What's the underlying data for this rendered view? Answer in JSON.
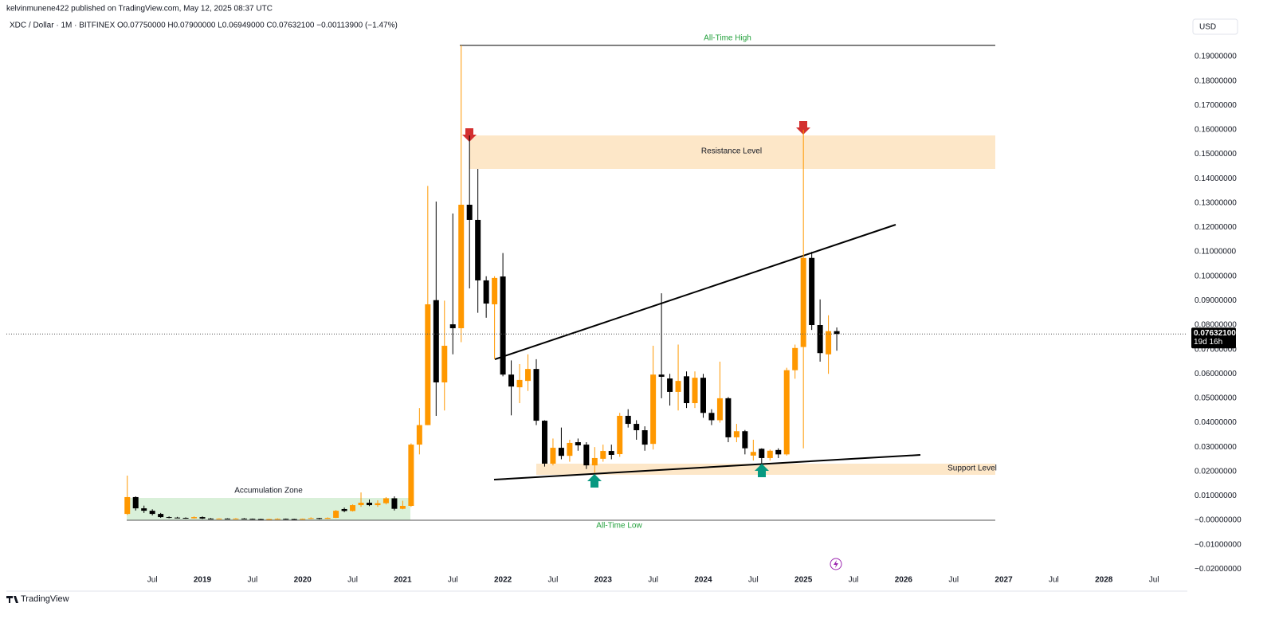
{
  "header": {
    "publisher": "kelvinmunene422 published on TradingView.com, May 12, 2025 08:37 UTC",
    "legend": "XDC / Dollar · 1M · BITFINEX  O0.07750000  H0.07900000  L0.06949000  C0.07632100  −0.00113900 (−1.47%)",
    "currency": "USD",
    "logo": "TradingView"
  },
  "chart_data": {
    "type": "candlestick",
    "up_color": "#ff9800",
    "down_color": "#000000",
    "x": [
      "2018-04",
      "2018-05",
      "2018-06",
      "2018-07",
      "2018-08",
      "2018-09",
      "2018-10",
      "2018-11",
      "2018-12",
      "2019-01",
      "2019-02",
      "2019-03",
      "2019-04",
      "2019-05",
      "2019-06",
      "2019-07",
      "2019-08",
      "2019-09",
      "2019-10",
      "2019-11",
      "2019-12",
      "2020-01",
      "2020-02",
      "2020-03",
      "2020-04",
      "2020-05",
      "2020-06",
      "2020-07",
      "2020-08",
      "2020-09",
      "2020-10",
      "2020-11",
      "2020-12",
      "2021-01",
      "2021-02",
      "2021-03",
      "2021-04",
      "2021-05",
      "2021-06",
      "2021-07",
      "2021-08",
      "2021-09",
      "2021-10",
      "2021-11",
      "2021-12",
      "2022-01",
      "2022-02",
      "2022-03",
      "2022-04",
      "2022-05",
      "2022-06",
      "2022-07",
      "2022-08",
      "2022-09",
      "2022-10",
      "2022-11",
      "2022-12",
      "2023-01",
      "2023-02",
      "2023-03",
      "2023-04",
      "2023-05",
      "2023-06",
      "2023-07",
      "2023-08",
      "2023-09",
      "2023-10",
      "2023-11",
      "2023-12",
      "2024-01",
      "2024-02",
      "2024-03",
      "2024-04",
      "2024-05",
      "2024-06",
      "2024-07",
      "2024-08",
      "2024-09",
      "2024-10",
      "2024-11",
      "2024-12",
      "2025-01",
      "2025-02",
      "2025-03",
      "2025-04",
      "2025-05"
    ],
    "open": [
      0.0026,
      0.0095,
      0.0049,
      0.0039,
      0.0026,
      0.0013,
      0.0011,
      0.001,
      0.0008,
      0.0013,
      0.0007,
      0.0006,
      0.0007,
      0.0006,
      0.0007,
      0.0006,
      0.0005,
      0.0004,
      0.0005,
      0.0006,
      0.0005,
      0.0004,
      0.0006,
      0.0009,
      0.0006,
      0.001,
      0.0046,
      0.0038,
      0.0062,
      0.0072,
      0.0062,
      0.007,
      0.009,
      0.0047,
      0.0059,
      0.031,
      0.039,
      0.0902,
      0.0565,
      0.0803,
      0.0787,
      0.1293,
      0.1231,
      0.0983,
      0.0885,
      0.0999,
      0.0597,
      0.0545,
      0.0571,
      0.062,
      0.0408,
      0.0232,
      0.0297,
      0.0264,
      0.032,
      0.031,
      0.0225,
      0.0252,
      0.0284,
      0.0271,
      0.0428,
      0.0395,
      0.0369,
      0.0313,
      0.0597,
      0.0581,
      0.0526,
      0.059,
      0.048,
      0.0584,
      0.044,
      0.041,
      0.05,
      0.034,
      0.0365,
      0.0265,
      0.0293,
      0.0255,
      0.0288,
      0.027,
      0.0615,
      0.071,
      0.1075,
      0.08,
      0.068,
      0.0775
    ],
    "high": [
      0.0183,
      0.0098,
      0.006,
      0.0045,
      0.003,
      0.0016,
      0.0014,
      0.0012,
      0.0016,
      0.0016,
      0.0009,
      0.0008,
      0.0008,
      0.0009,
      0.0009,
      0.0007,
      0.0006,
      0.0006,
      0.0008,
      0.0007,
      0.0006,
      0.0007,
      0.0012,
      0.001,
      0.0012,
      0.0042,
      0.0052,
      0.0065,
      0.0114,
      0.0085,
      0.0082,
      0.0095,
      0.0098,
      0.008,
      0.0315,
      0.046,
      0.137,
      0.1306,
      0.09,
      0.1257,
      0.1946,
      0.1577,
      0.144,
      0.1,
      0.1,
      0.1095,
      0.0655,
      0.064,
      0.068,
      0.066,
      0.041,
      0.0335,
      0.038,
      0.033,
      0.0335,
      0.032,
      0.03,
      0.031,
      0.031,
      0.044,
      0.0455,
      0.041,
      0.0385,
      0.0715,
      0.093,
      0.06,
      0.072,
      0.061,
      0.061,
      0.06,
      0.0455,
      0.065,
      0.0505,
      0.0395,
      0.037,
      0.033,
      0.0295,
      0.029,
      0.0295,
      0.0625,
      0.072,
      0.16,
      0.11,
      0.0905,
      0.084,
      0.079
    ],
    "low": [
      0.0022,
      0.004,
      0.003,
      0.002,
      0.001,
      0.0008,
      0.0009,
      0.0006,
      0.0007,
      0.0005,
      0.0005,
      0.0005,
      0.0005,
      0.0005,
      0.0005,
      0.0004,
      0.0003,
      0.0003,
      0.0004,
      0.0004,
      0.0004,
      0.0004,
      0.0005,
      0.0004,
      0.0005,
      0.0009,
      0.0033,
      0.0036,
      0.0055,
      0.0058,
      0.0055,
      0.0065,
      0.004,
      0.0045,
      0.0055,
      0.027,
      0.039,
      0.0428,
      0.045,
      0.068,
      0.073,
      0.095,
      0.085,
      0.083,
      0.066,
      0.059,
      0.043,
      0.048,
      0.053,
      0.039,
      0.022,
      0.0225,
      0.025,
      0.024,
      0.0285,
      0.021,
      0.0195,
      0.024,
      0.025,
      0.026,
      0.038,
      0.033,
      0.0285,
      0.029,
      0.05,
      0.047,
      0.045,
      0.046,
      0.046,
      0.042,
      0.039,
      0.04,
      0.032,
      0.032,
      0.027,
      0.0245,
      0.0232,
      0.0245,
      0.0255,
      0.0265,
      0.058,
      0.0295,
      0.078,
      0.065,
      0.06,
      0.06949
    ],
    "close": [
      0.0095,
      0.0049,
      0.0039,
      0.0026,
      0.0013,
      0.0011,
      0.001,
      0.0008,
      0.0013,
      0.0007,
      0.0006,
      0.0007,
      0.0006,
      0.0007,
      0.0006,
      0.0005,
      0.0004,
      0.0005,
      0.0006,
      0.0005,
      0.0004,
      0.0006,
      0.0009,
      0.0006,
      0.001,
      0.0039,
      0.0038,
      0.0062,
      0.0072,
      0.0062,
      0.007,
      0.009,
      0.0047,
      0.0059,
      0.031,
      0.039,
      0.0885,
      0.0565,
      0.0715,
      0.0787,
      0.1293,
      0.1231,
      0.0983,
      0.0888,
      0.0993,
      0.0597,
      0.0548,
      0.0575,
      0.062,
      0.0408,
      0.0232,
      0.0297,
      0.0264,
      0.0317,
      0.0307,
      0.0225,
      0.0255,
      0.0284,
      0.0268,
      0.0428,
      0.0395,
      0.0369,
      0.031,
      0.0597,
      0.0588,
      0.0526,
      0.0571,
      0.048,
      0.0584,
      0.044,
      0.041,
      0.05,
      0.034,
      0.0365,
      0.0295,
      0.028,
      0.0255,
      0.0285,
      0.027,
      0.0615,
      0.0706,
      0.1075,
      0.08,
      0.0685,
      0.0775,
      0.076321
    ],
    "last_price_label": "0.07632100",
    "countdown_label": "19d 16h",
    "xlim": [
      "2017-06",
      "2028-11"
    ],
    "xticks": [
      {
        "value": "2018-07",
        "label": "Jul"
      },
      {
        "value": "2019-01",
        "label": "2019"
      },
      {
        "value": "2019-07",
        "label": "Jul"
      },
      {
        "value": "2020-01",
        "label": "2020"
      },
      {
        "value": "2020-07",
        "label": "Jul"
      },
      {
        "value": "2021-01",
        "label": "2021"
      },
      {
        "value": "2021-07",
        "label": "Jul"
      },
      {
        "value": "2022-01",
        "label": "2022"
      },
      {
        "value": "2022-07",
        "label": "Jul"
      },
      {
        "value": "2023-01",
        "label": "2023"
      },
      {
        "value": "2023-07",
        "label": "Jul"
      },
      {
        "value": "2024-01",
        "label": "2024"
      },
      {
        "value": "2024-07",
        "label": "Jul"
      },
      {
        "value": "2025-01",
        "label": "2025"
      },
      {
        "value": "2025-07",
        "label": "Jul"
      },
      {
        "value": "2026-01",
        "label": "2026"
      },
      {
        "value": "2026-07",
        "label": "Jul"
      },
      {
        "value": "2027-01",
        "label": "2027"
      },
      {
        "value": "2027-07",
        "label": "Jul"
      },
      {
        "value": "2028-01",
        "label": "2028"
      },
      {
        "value": "2028-07",
        "label": "Jul"
      }
    ],
    "ylim": [
      -0.0212,
      0.1985
    ],
    "yticks": [
      {
        "value": 0.19,
        "label": "0.19000000"
      },
      {
        "value": 0.18,
        "label": "0.18000000"
      },
      {
        "value": 0.17,
        "label": "0.17000000"
      },
      {
        "value": 0.16,
        "label": "0.16000000"
      },
      {
        "value": 0.15,
        "label": "0.15000000"
      },
      {
        "value": 0.14,
        "label": "0.14000000"
      },
      {
        "value": 0.13,
        "label": "0.13000000"
      },
      {
        "value": 0.12,
        "label": "0.12000000"
      },
      {
        "value": 0.11,
        "label": "0.11000000"
      },
      {
        "value": 0.1,
        "label": "0.10000000"
      },
      {
        "value": 0.09,
        "label": "0.09000000"
      },
      {
        "value": 0.08,
        "label": "0.08000000"
      },
      {
        "value": 0.07,
        "label": "0.07000000"
      },
      {
        "value": 0.06,
        "label": "0.06000000"
      },
      {
        "value": 0.05,
        "label": "0.05000000"
      },
      {
        "value": 0.04,
        "label": "0.04000000"
      },
      {
        "value": 0.03,
        "label": "0.03000000"
      },
      {
        "value": 0.02,
        "label": "0.02000000"
      },
      {
        "value": 0.01,
        "label": "0.01000000"
      },
      {
        "value": 0,
        "label": "−0.00000000"
      },
      {
        "value": -0.01,
        "label": "−0.01000000"
      },
      {
        "value": -0.02,
        "label": "−0.02000000"
      }
    ],
    "annotations": [
      "All-Time High",
      "Resistance Level",
      "Accumulation Zone",
      "Support Level",
      "All-Time Low"
    ]
  }
}
